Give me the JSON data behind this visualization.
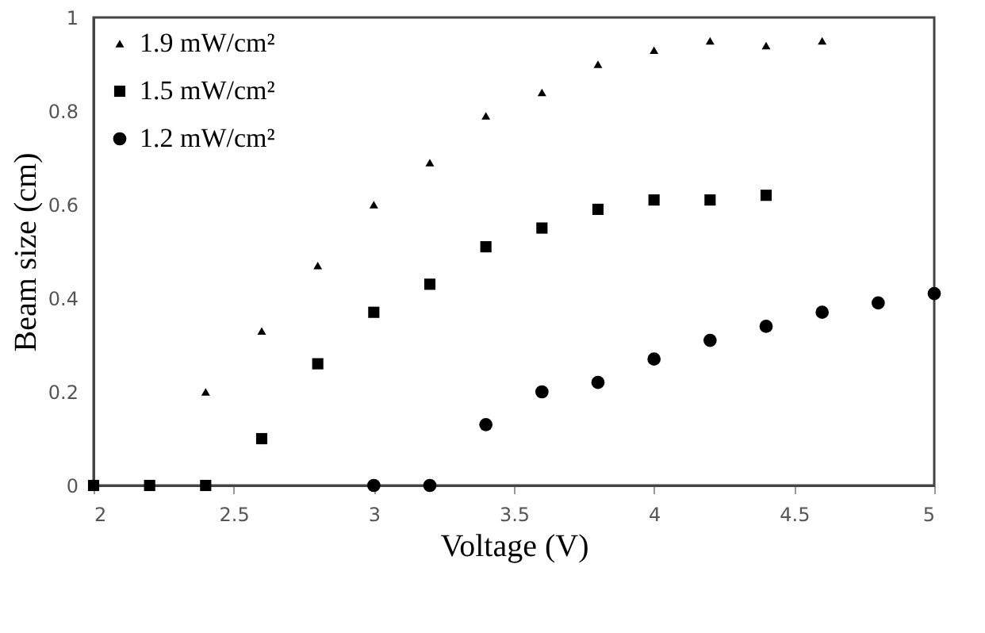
{
  "chart_data": {
    "type": "scatter",
    "xlabel": "Voltage (V)",
    "ylabel": "Beam size (cm)",
    "xlim": [
      2,
      5
    ],
    "xticks": [
      2,
      2.5,
      3,
      3.5,
      4,
      4.5,
      5
    ],
    "ylim": [
      0,
      1
    ],
    "yticks": [
      0,
      0.2,
      0.4,
      0.6,
      0.8,
      1
    ],
    "grid": false,
    "legend": "top left",
    "series": [
      {
        "name": "1.9 mW/cm²",
        "color": "#000000",
        "marker": "triangle",
        "x": [
          2.4,
          2.6,
          2.8,
          3.0,
          3.2,
          3.4,
          3.6,
          3.8,
          4.0,
          4.2,
          4.4,
          4.6
        ],
        "values": [
          0.2,
          0.33,
          0.47,
          0.6,
          0.69,
          0.79,
          0.84,
          0.9,
          0.93,
          0.95,
          0.94,
          0.95
        ]
      },
      {
        "name": "1.5 mW/cm²",
        "color": "#000000",
        "marker": "square",
        "x": [
          2.0,
          2.2,
          2.4,
          2.6,
          2.8,
          3.0,
          3.2,
          3.4,
          3.6,
          3.8,
          4.0,
          4.2,
          4.4
        ],
        "values": [
          0,
          0,
          0,
          0.1,
          0.26,
          0.37,
          0.43,
          0.51,
          0.55,
          0.59,
          0.61,
          0.61,
          0.62
        ]
      },
      {
        "name": "1.2 mW/cm²",
        "color": "#000000",
        "marker": "circle",
        "x": [
          3.0,
          3.2,
          3.4,
          3.6,
          3.8,
          4.0,
          4.2,
          4.4,
          4.6,
          4.8,
          5.0
        ],
        "values": [
          0,
          0,
          0.13,
          0.2,
          0.22,
          0.27,
          0.31,
          0.34,
          0.37,
          0.39,
          0.41
        ]
      }
    ]
  }
}
